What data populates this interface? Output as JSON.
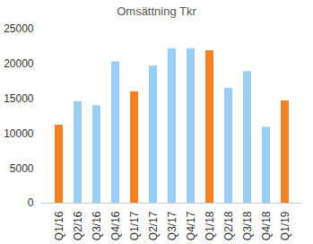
{
  "chart_data": {
    "type": "bar",
    "title": "Omsättning Tkr",
    "categories": [
      "Q1/16",
      "Q2/16",
      "Q3/16",
      "Q4/16",
      "Q1/17",
      "Q2/17",
      "Q3/17",
      "Q4/17",
      "Q1/18",
      "Q2/18",
      "Q3/18",
      "Q4/18",
      "Q1/19"
    ],
    "values": [
      11200,
      14600,
      14000,
      20300,
      16000,
      19700,
      22200,
      22200,
      21900,
      16500,
      18900,
      10900,
      14700
    ],
    "colors": [
      "#f5821f",
      "#9acff5",
      "#9acff5",
      "#9acff5",
      "#f5821f",
      "#9acff5",
      "#9acff5",
      "#9acff5",
      "#f5821f",
      "#9acff5",
      "#9acff5",
      "#9acff5",
      "#f5821f"
    ],
    "ylim": [
      0,
      25000
    ],
    "yticks": [
      0,
      5000,
      10000,
      15000,
      20000,
      25000
    ],
    "grid": false
  }
}
